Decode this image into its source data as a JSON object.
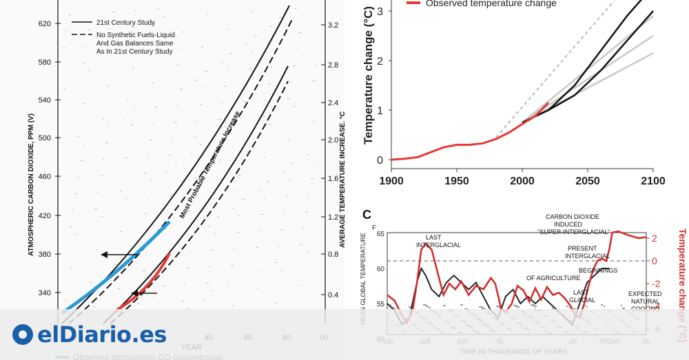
{
  "chart_data": [
    {
      "type": "line",
      "ylabel_left": "ATMOSPHERIC CARBON DIOXIDE, PPM (V)",
      "ylabel_right": "AVERAGE TEMPERATURE INCREASE, °C",
      "xlabel": "YEAR",
      "y_left_ticks": [
        "620",
        "580",
        "540",
        "500",
        "460",
        "420",
        "380",
        "340"
      ],
      "y_right_ticks": [
        "3.2",
        "2.8",
        "2.4",
        "2.0",
        "1.6",
        "1.2",
        "0.8",
        "0.4"
      ],
      "x_ticks": [
        "20",
        "40",
        "60",
        "80",
        "00"
      ],
      "legend": [
        "21st Century Study",
        "No Synthetic Fuels-Liquid",
        "And Gas Balances Same",
        "As In 21st Century Study"
      ],
      "band_label": "Most Probable Temperature Increase",
      "footer": "Observed atmospheric CO  concentration",
      "colors": {
        "observed_co2": "#2a9ad6",
        "observed_temp": "#e53935",
        "ink": "#111111"
      }
    },
    {
      "type": "line",
      "legend": [
        "Observed temperature change"
      ],
      "ylabel": "Temperature change (°C)",
      "x_ticks": [
        "1900",
        "1950",
        "2000",
        "2050",
        "2100"
      ],
      "y_ticks": [
        "0",
        "1",
        "2",
        "3"
      ],
      "xlim": [
        1900,
        2100
      ],
      "ylim": [
        -0.2,
        3.2
      ],
      "observed": {
        "x": [
          1900,
          1910,
          1920,
          1930,
          1940,
          1950,
          1960,
          1970,
          1980,
          1990,
          2000,
          2010,
          2020
        ],
        "y": [
          0.0,
          0.02,
          0.05,
          0.15,
          0.25,
          0.3,
          0.3,
          0.33,
          0.42,
          0.55,
          0.72,
          0.88,
          1.15
        ]
      },
      "projections_black": [
        {
          "x": [
            2000,
            2020,
            2040,
            2060,
            2080,
            2100
          ],
          "y": [
            0.75,
            1.0,
            1.5,
            2.2,
            2.9,
            3.5
          ]
        },
        {
          "x": [
            2000,
            2020,
            2040,
            2060,
            2080,
            2100
          ],
          "y": [
            0.75,
            1.0,
            1.3,
            1.8,
            2.4,
            3.0
          ]
        }
      ],
      "projections_gray": [
        {
          "x": [
            2000,
            2100
          ],
          "y": [
            0.75,
            2.9
          ]
        },
        {
          "x": [
            2000,
            2100
          ],
          "y": [
            0.75,
            2.5
          ]
        },
        {
          "x": [
            2000,
            2100
          ],
          "y": [
            0.75,
            2.15
          ]
        },
        {
          "x": [
            1980,
            2070
          ],
          "y": [
            0.45,
            3.2
          ]
        }
      ],
      "colors": {
        "observed": "#e53935",
        "projection": "#111111",
        "models": "#c8c8c8"
      }
    },
    {
      "type": "line",
      "panel_label": "C",
      "xlabel": "TIME IN THOUSANDS OF YEARS",
      "ylabel_left": "MEAN GLOBAL TEMPERATURE",
      "ylabel_right": "Temperature change (°C)",
      "unit_left": "F",
      "y_left_ticks": [
        "65",
        "60",
        "55",
        "50"
      ],
      "y_right_ticks": [
        "2",
        "0",
        "-2",
        "-4",
        "-6"
      ],
      "x_ticks": [
        "-150",
        "-125",
        "-100",
        "-75",
        "-25",
        "TODAY",
        "25"
      ],
      "annotations": [
        "LAST",
        "INTERGLACIAL",
        "CARBON DIOXIDE",
        "INDUCED",
        "\"SUPER-INTERGLACIAL\"",
        "PRESENT",
        "INTERGLACIAL",
        "BEGINNINGS",
        "OF AGRICULTURE",
        "LAST",
        "GLACIAL",
        "EXPECTED",
        "NATURAL",
        "COOLING"
      ],
      "series": [
        {
          "x": [
            -150,
            -145,
            -140,
            -135,
            -130,
            -127,
            -124,
            -120,
            -115,
            -110,
            -105,
            -100,
            -95,
            -90,
            -85,
            -80,
            -75,
            -70,
            -65,
            -60,
            -55,
            -50,
            -45,
            -40,
            -35,
            -30,
            -25,
            -20,
            -15,
            -10,
            -5,
            0
          ],
          "y": [
            55,
            54,
            52,
            53,
            58,
            60,
            59,
            57,
            56,
            58,
            59,
            58,
            57,
            58,
            56,
            54,
            53,
            56,
            57,
            55,
            56,
            55,
            56,
            55,
            54,
            53,
            52,
            55,
            58,
            59,
            60,
            60
          ]
        },
        {
          "x": [
            -150,
            -145,
            -140,
            -137,
            -133,
            -130,
            -127,
            -124,
            -120,
            -116,
            -112,
            -108,
            -104,
            -100,
            -95,
            -90,
            -85,
            -80,
            -77,
            -73,
            -70,
            -66,
            -62,
            -58,
            -54,
            -50,
            -46,
            -42,
            -38,
            -34,
            -30,
            -26,
            -23,
            -20,
            -17,
            -14,
            -11,
            -8,
            -5,
            -2,
            0,
            2,
            6,
            12,
            20,
            25
          ],
          "y": [
            -3.0,
            -3.5,
            -4.8,
            -5.5,
            -4.5,
            -2.0,
            1.0,
            1.5,
            1.0,
            -1.0,
            -3.0,
            -2.0,
            -2.5,
            -1.8,
            -3.0,
            -2.2,
            -2.5,
            -1.5,
            -2.0,
            -4.2,
            -4.5,
            -3.8,
            -2.2,
            -2.6,
            -3.6,
            -2.4,
            -3.4,
            -2.3,
            -3.0,
            -2.8,
            -3.3,
            -4.0,
            -4.8,
            -5.0,
            -3.8,
            -2.2,
            -0.8,
            0.0,
            0.2,
            0.0,
            1.0,
            2.5,
            2.6,
            2.3,
            2.0,
            2.1
          ]
        }
      ],
      "colors": {
        "reconstruction": "#222222",
        "temperature_change": "#d32f2f"
      }
    }
  ],
  "watermark": {
    "brand": "eldiario.es",
    "text": "elDiario.es"
  }
}
